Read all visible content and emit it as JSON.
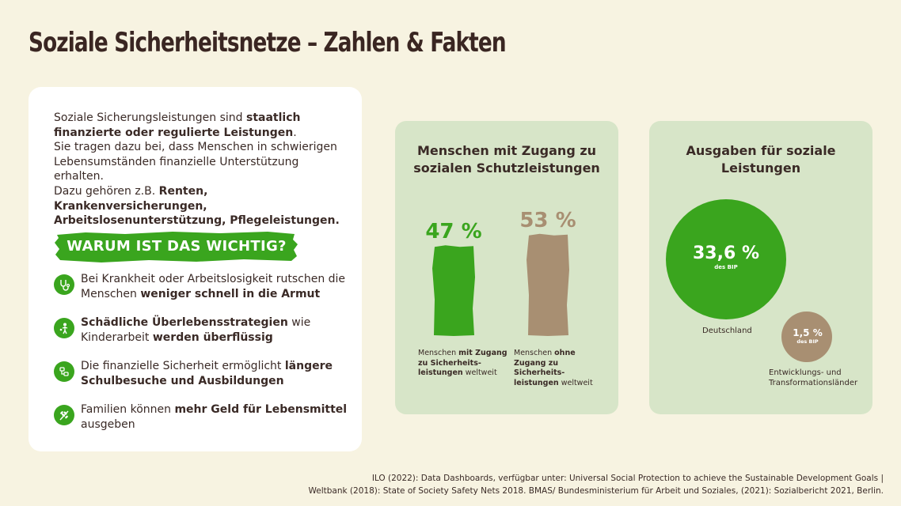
{
  "header": {
    "title": "Soziale Sicherheitsnetze – Zahlen & Fakten"
  },
  "intro": {
    "p1_a": "Soziale Sicherungsleistungen sind ",
    "p1_b": "staatlich finanzierte oder regulierte Leistungen",
    "p1_c": ".",
    "p2": "Sie tragen dazu bei, dass Menschen in schwierigen Lebensumständen finanzielle Unterstützung erhalten.",
    "p3_a": "Dazu gehören z.B. ",
    "p3_b": "Renten, Krankenversicherungen, Arbeitslosenunterstützung, Pflegeleistungen."
  },
  "why": {
    "label": "WARUM IST DAS WICHTIG?",
    "color": "#3aa51e"
  },
  "reasons": [
    {
      "icon": "stethoscope-icon",
      "a": "Bei Krankheit oder Arbeitslosigkeit rutschen die Menschen ",
      "b": "weniger schnell in die Armut",
      "c": ""
    },
    {
      "icon": "child-icon",
      "a": "",
      "b": "Schädliche Überlebensstrategien",
      "c": " wie Kinderarbeit werden überflüssig",
      "c_bold": "werden überflüssig",
      "c_plain": " wie Kinderarbeit "
    },
    {
      "icon": "school-icon",
      "a": "Die finanzielle Sicherheit ermöglicht ",
      "b": "längere Schulbesuche und Ausbildungen",
      "c": ""
    },
    {
      "icon": "wheat-icon",
      "a": "Familien können ",
      "b": "mehr Geld für Lebensmittel",
      "c": " ausgeben"
    }
  ],
  "chart_data": [
    {
      "type": "bar",
      "title": "Menschen mit Zugang zu sozialen Schutzleistungen",
      "categories": [
        "Menschen mit Zugang zu Sicherheits-leistungen weltweit",
        "Menschen ohne Zugang zu Sicherheits-leistungen weltweit"
      ],
      "values": [
        47,
        53
      ],
      "value_labels": [
        "47 %",
        "53 %"
      ],
      "colors": [
        "#3aa51e",
        "#a88f72"
      ],
      "captions": [
        {
          "a": "Menschen ",
          "b": "mit Zugang zu Sicherheits-leistungen",
          "c": " weltweit"
        },
        {
          "a": "Menschen ",
          "b": "ohne Zugang zu Sicherheits-leistungen",
          "c": " weltweit"
        }
      ]
    },
    {
      "type": "bubble",
      "title": "Ausgaben für soziale Leistungen",
      "categories": [
        "Deutschland",
        "Entwicklungs- und Transformationsländer"
      ],
      "values": [
        33.6,
        1.5
      ],
      "value_labels": [
        "33,6 %",
        "1,5 %"
      ],
      "unit_label": "des BIP",
      "colors": [
        "#3aa51e",
        "#a88f72"
      ]
    }
  ],
  "footer": {
    "line1": "ILO (2022): Data Dashboards, verfügbar unter: Universal Social Protection to achieve the Sustainable Development Goals |",
    "line2": "Weltbank (2018): State of Society Safety Nets 2018. BMAS/ Bundesministerium für Arbeit und Soziales, (2021): Sozialbericht 2021, Berlin."
  }
}
